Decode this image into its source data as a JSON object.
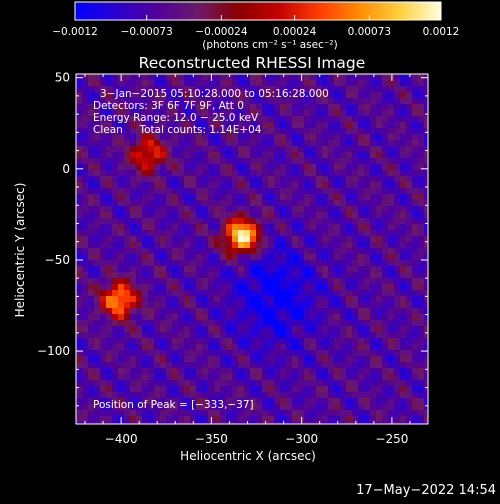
{
  "chart_data": {
    "type": "heatmap",
    "title": "Reconstructed RHESSI Image",
    "xlabel": "Heliocentric X (arcsec)",
    "ylabel": "Heliocentric Y (arcsec)",
    "xlim": [
      -425,
      -230
    ],
    "ylim": [
      -140,
      52
    ],
    "xticks": [
      -400,
      -350,
      -300,
      -250
    ],
    "yticks": [
      -100,
      -50,
      0,
      50
    ],
    "xtick_labels": [
      "−400",
      "−350",
      "−300",
      "−250"
    ],
    "ytick_labels": [
      "−100",
      "−50",
      "0",
      "50"
    ],
    "colorbar": {
      "min": -0.0012,
      "max": 0.0012,
      "tick_values": [
        -0.0012,
        -0.00073,
        -0.00024,
        0.00024,
        0.00073,
        0.0012
      ],
      "tick_labels": [
        "−0.0012",
        "−0.00073",
        "−0.00024",
        "0.00024",
        "0.00073",
        "0.0012"
      ],
      "units_label": "(photons cm⁻² s⁻¹ asec⁻²)",
      "colors": [
        "#0000ff",
        "#2a00d0",
        "#50009a",
        "#6a1a6a",
        "#8a0000",
        "#c40000",
        "#ff3c00",
        "#ff8c00",
        "#ffd040",
        "#ffffe0"
      ]
    },
    "annotations": [
      "3−Jan−2015 05:10:28.000 to 05:16:28.000",
      "Detectors: 3F 6F 7F 9F, Att 0",
      "Energy Range: 12.0 − 25.0 keV",
      "Clean     Total counts: 1.14E+04"
    ],
    "peak_label": "Position of Peak = [−333,−37]",
    "peak": {
      "x": -333,
      "y": -37
    },
    "sources": [
      {
        "x": -333,
        "y": -37,
        "peak": 1.0
      },
      {
        "x": -401,
        "y": -72,
        "peak": 0.78
      },
      {
        "x": -385,
        "y": 8,
        "peak": 0.55
      }
    ],
    "negative_region": {
      "x": -315,
      "y": -70,
      "value": -0.3
    }
  },
  "footer": {
    "timestamp": "17−May−2022 14:54"
  }
}
